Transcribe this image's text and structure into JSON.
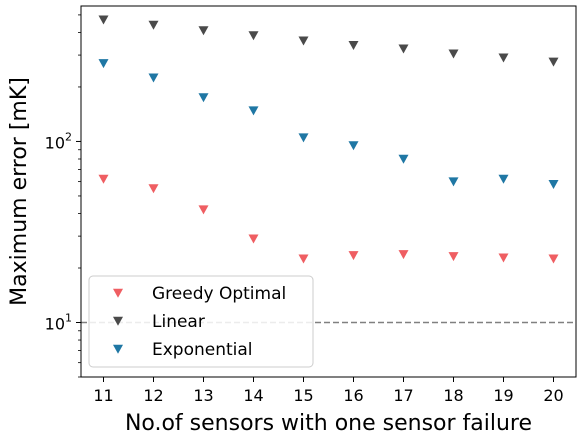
{
  "chart_data": {
    "type": "scatter",
    "xlabel": "No.of sensors with one sensor failure",
    "ylabel": "Maximum error [mK]",
    "yscale": "log",
    "xlim": [
      10.55,
      20.45
    ],
    "ylim": [
      5,
      560
    ],
    "x": [
      11,
      12,
      13,
      14,
      15,
      16,
      17,
      18,
      19,
      20
    ],
    "x_tick_labels": [
      "11",
      "12",
      "13",
      "14",
      "15",
      "16",
      "17",
      "18",
      "19",
      "20"
    ],
    "y_major_ticks": [
      {
        "value": 10,
        "base": "10",
        "exp": "1"
      },
      {
        "value": 100,
        "base": "10",
        "exp": "2"
      }
    ],
    "y_minor_ticks": [
      5,
      6,
      7,
      8,
      9,
      20,
      30,
      40,
      50,
      60,
      70,
      80,
      90,
      200,
      300,
      400,
      500
    ],
    "reference_line": {
      "y": 10,
      "style": "dashed",
      "color": "#808080"
    },
    "series": [
      {
        "name": "Greedy Optimal",
        "color": "#ef5e62",
        "marker": "triangle-down",
        "values": [
          62,
          55,
          42,
          29,
          22.5,
          23.5,
          23.8,
          23.2,
          22.8,
          22.5
        ]
      },
      {
        "name": "Linear",
        "color": "#4a4a4a",
        "marker": "triangle-down",
        "values": [
          470,
          440,
          410,
          385,
          360,
          340,
          325,
          305,
          290,
          275
        ]
      },
      {
        "name": "Exponential",
        "color": "#1f77a4",
        "marker": "triangle-down",
        "values": [
          270,
          225,
          175,
          148,
          105,
          95,
          80,
          60,
          62,
          58
        ]
      }
    ],
    "legend": {
      "position": "lower-left"
    },
    "grid": false
  }
}
